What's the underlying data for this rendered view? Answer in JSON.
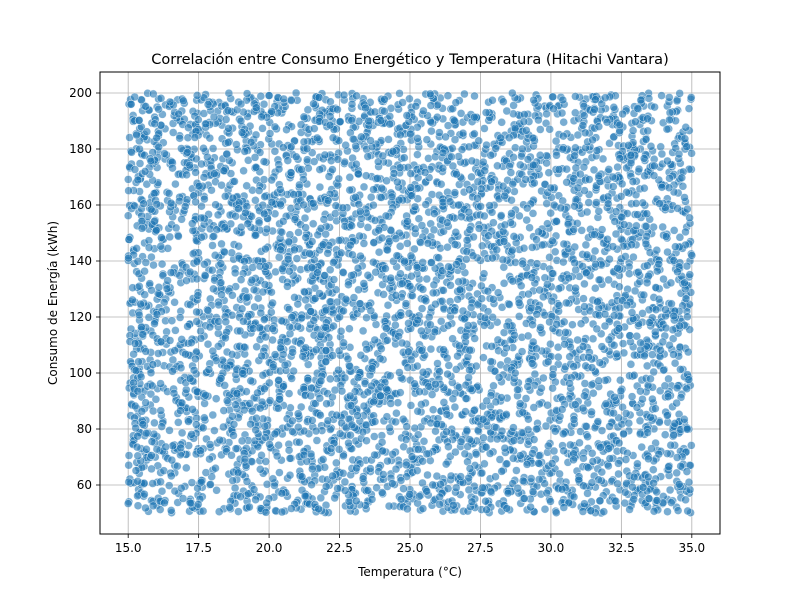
{
  "chart_data": {
    "type": "scatter",
    "title": "Correlación entre Consumo Energético y Temperatura (Hitachi Vantara)",
    "xlabel": "Temperatura (°C)",
    "ylabel": "Consumo de Energía (kWh)",
    "xlim": [
      14.0,
      36.0
    ],
    "ylim": [
      42.5,
      207.5
    ],
    "xticks": [
      15.0,
      17.5,
      20.0,
      22.5,
      25.0,
      27.5,
      30.0,
      32.5,
      35.0
    ],
    "xtick_labels": [
      "15.0",
      "17.5",
      "20.0",
      "22.5",
      "25.0",
      "27.5",
      "30.0",
      "32.5",
      "35.0"
    ],
    "yticks": [
      60,
      80,
      100,
      120,
      140,
      160,
      180,
      200
    ],
    "ytick_labels": [
      "60",
      "80",
      "100",
      "120",
      "140",
      "160",
      "180",
      "200"
    ],
    "grid": true,
    "legend": "none",
    "point_color": "#1f77b4",
    "point_edge_color": "#ffffff",
    "point_alpha": 0.6,
    "series": [
      {
        "point_count_estimate": 5000,
        "distribution": "uniform",
        "x_range": [
          15.0,
          35.0
        ],
        "y_range": [
          50,
          200
        ],
        "sample_points": [
          [
            15.1,
            196
          ],
          [
            15.3,
            185
          ],
          [
            15.6,
            172
          ],
          [
            16.0,
            151
          ],
          [
            16.4,
            133
          ],
          [
            16.9,
            112
          ],
          [
            17.2,
            98
          ],
          [
            17.7,
            84
          ],
          [
            18.1,
            66
          ],
          [
            18.6,
            52
          ],
          [
            19.0,
            190
          ],
          [
            19.5,
            177
          ],
          [
            20.1,
            161
          ],
          [
            20.4,
            144
          ],
          [
            20.9,
            127
          ],
          [
            21.3,
            109
          ],
          [
            21.8,
            91
          ],
          [
            22.2,
            73
          ],
          [
            22.7,
            58
          ],
          [
            23.1,
            199
          ],
          [
            23.6,
            183
          ],
          [
            24.0,
            166
          ],
          [
            24.5,
            148
          ],
          [
            25.0,
            131
          ],
          [
            25.4,
            115
          ],
          [
            25.9,
            96
          ],
          [
            26.3,
            79
          ],
          [
            26.8,
            63
          ],
          [
            27.2,
            54
          ],
          [
            27.7,
            193
          ],
          [
            28.1,
            174
          ],
          [
            28.6,
            157
          ],
          [
            29.0,
            139
          ],
          [
            29.5,
            121
          ],
          [
            29.9,
            104
          ],
          [
            30.4,
            87
          ],
          [
            30.8,
            69
          ],
          [
            31.3,
            57
          ],
          [
            31.7,
            188
          ],
          [
            32.2,
            170
          ],
          [
            32.6,
            153
          ],
          [
            33.1,
            136
          ],
          [
            33.5,
            118
          ],
          [
            34.0,
            101
          ],
          [
            34.4,
            82
          ],
          [
            34.9,
            61
          ],
          [
            35.0,
            142
          ]
        ]
      }
    ]
  }
}
